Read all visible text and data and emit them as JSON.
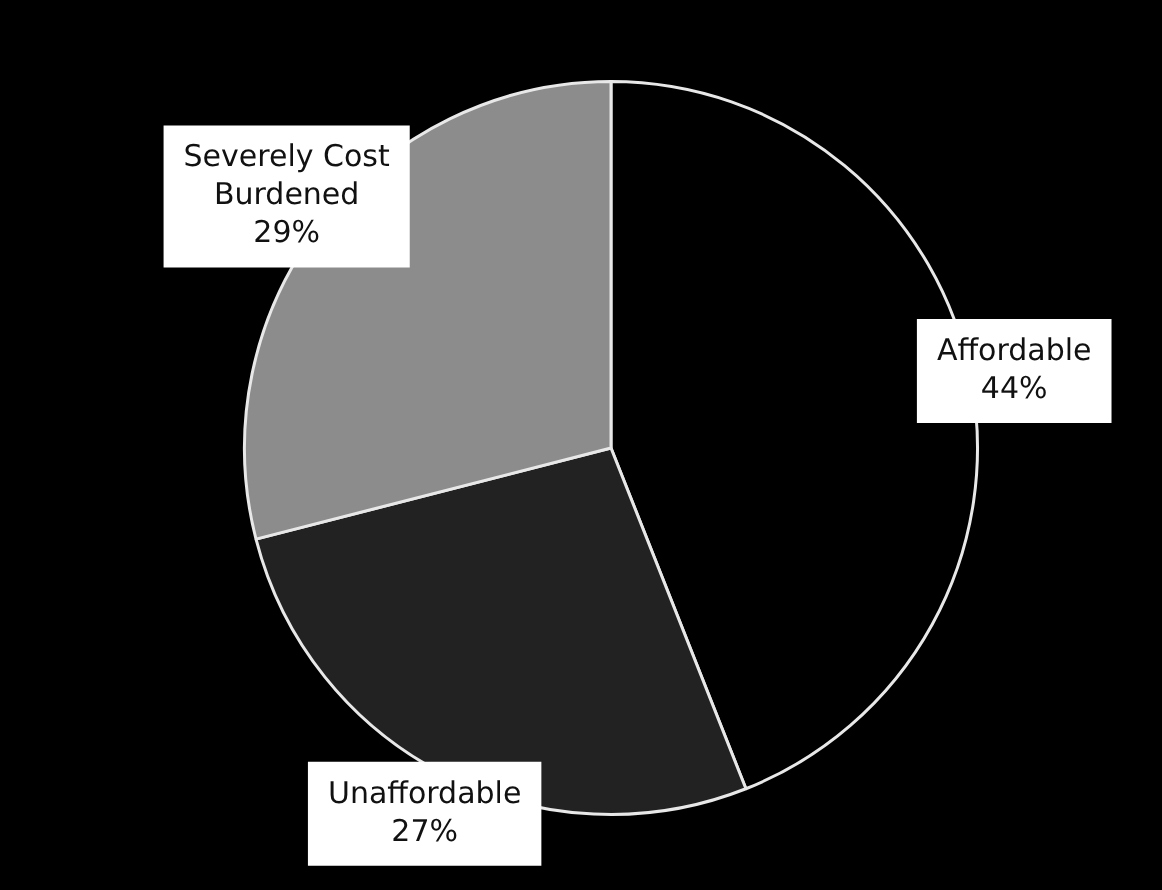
{
  "chart_data": {
    "type": "pie",
    "categories": [
      "Affordable",
      "Unaffordable",
      "Severely Cost Burdened"
    ],
    "values": [
      44,
      27,
      29
    ],
    "value_labels": [
      "44%",
      "27%",
      "29%"
    ],
    "colors": [
      "#000000",
      "#222222",
      "#8c8c8c"
    ],
    "legend": false
  }
}
